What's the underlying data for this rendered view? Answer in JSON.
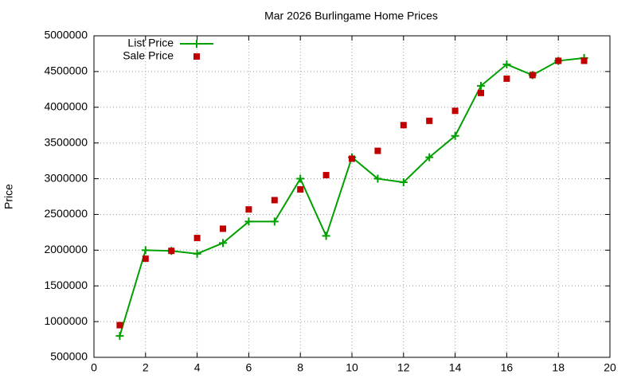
{
  "chart_data": {
    "type": "line",
    "title": "Mar 2026 Burlingame Home Prices",
    "y_label": "Price",
    "x": [
      1,
      2,
      3,
      4,
      5,
      6,
      7,
      8,
      9,
      10,
      11,
      12,
      13,
      14,
      15,
      16,
      17,
      18,
      19
    ],
    "series": [
      {
        "name": "List Price",
        "color": "#00a000",
        "marker": "plus",
        "line": true,
        "values": [
          800000,
          2000000,
          1990000,
          1950000,
          2100000,
          2400000,
          2400000,
          3000000,
          2200000,
          3300000,
          3000000,
          2950000,
          3300000,
          3600000,
          4300000,
          4600000,
          4450000,
          4650000,
          4690000
        ]
      },
      {
        "name": "Sale Price",
        "color": "#c00000",
        "marker": "square",
        "line": false,
        "values": [
          950000,
          1880000,
          1990000,
          2170000,
          2300000,
          2570000,
          2700000,
          2850000,
          3050000,
          3280000,
          3390000,
          3750000,
          3810000,
          3950000,
          4200000,
          4400000,
          4450000,
          4650000,
          4650000
        ]
      }
    ],
    "xlim": [
      0,
      20
    ],
    "xticks": [
      0,
      2,
      4,
      6,
      8,
      10,
      12,
      14,
      16,
      18,
      20
    ],
    "ylim": [
      500000,
      5000000
    ],
    "yticks": [
      500000,
      1000000,
      1500000,
      2000000,
      2500000,
      3000000,
      3500000,
      4000000,
      4500000,
      5000000
    ],
    "grid": true,
    "legend": "top-left"
  }
}
